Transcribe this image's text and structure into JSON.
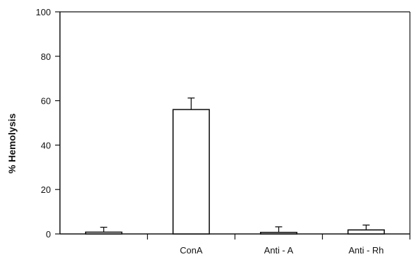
{
  "chart_data": {
    "type": "bar",
    "title": "",
    "xlabel": "",
    "ylabel": "% Hemolysis",
    "ylim": [
      0,
      100
    ],
    "yticks": [
      0,
      20,
      40,
      60,
      80,
      100
    ],
    "categories": [
      "",
      "ConA",
      "Anti - A",
      "Anti - Rh"
    ],
    "values": [
      0.8,
      56,
      0.7,
      1.8
    ],
    "errors": [
      2.2,
      5.2,
      2.5,
      2.2
    ],
    "grid": false,
    "legend": "none",
    "colors": {
      "bar_fill": "#ffffff",
      "stroke": "#111111"
    }
  }
}
